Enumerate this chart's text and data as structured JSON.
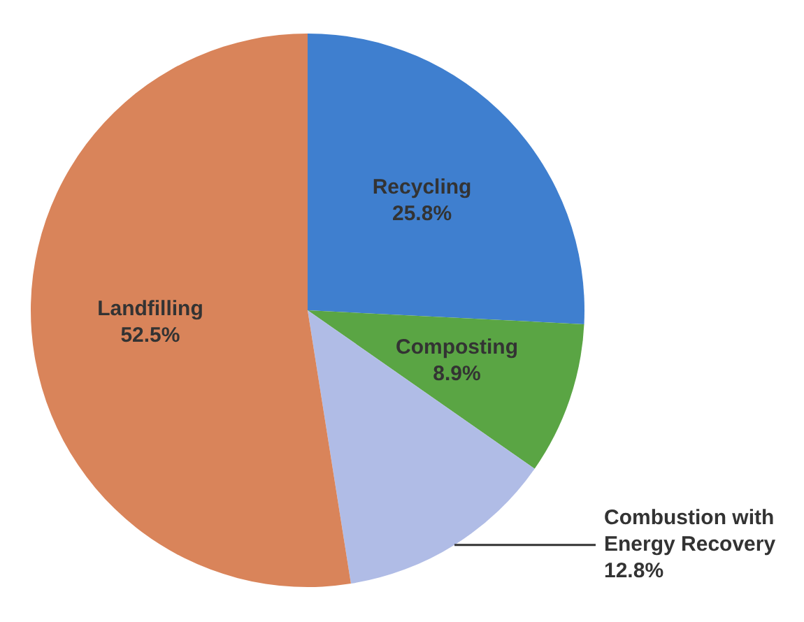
{
  "chart_data": {
    "type": "pie",
    "categories": [
      "Recycling",
      "Composting",
      "Combustion with Energy Recovery",
      "Landfilling"
    ],
    "values": [
      25.8,
      8.9,
      12.8,
      52.5
    ],
    "colors": [
      "#3f7fcf",
      "#5aa544",
      "#b0bce6",
      "#d9845a"
    ],
    "value_labels": [
      "25.8%",
      "8.9%",
      "12.8%",
      "52.5%"
    ]
  }
}
